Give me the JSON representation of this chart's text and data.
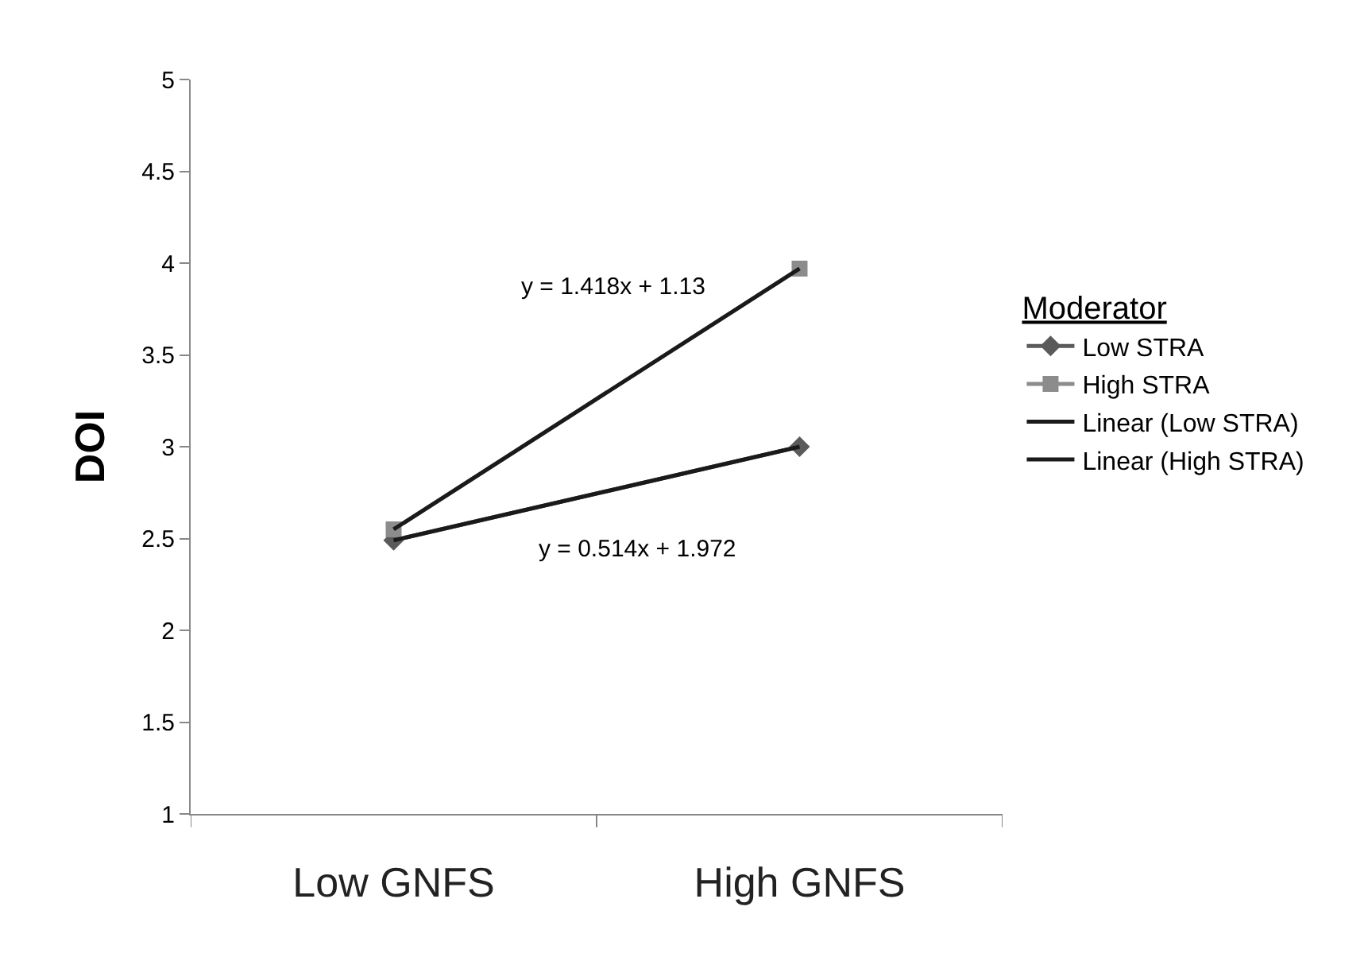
{
  "chart_data": {
    "type": "line",
    "ylabel": "DOI",
    "legend_title": "Moderator",
    "legend": "right",
    "categories": [
      "Low GNFS",
      "High GNFS"
    ],
    "series": [
      {
        "name": "Low STRA",
        "color": "#5a5a5a",
        "values": [
          2.49,
          3.0
        ],
        "marker": "diamond"
      },
      {
        "name": "High STRA",
        "color": "#8c8c8c",
        "values": [
          2.55,
          3.97
        ],
        "marker": "square"
      },
      {
        "name": "Linear (Low STRA)",
        "color": "#1a1a1a",
        "values": [
          2.49,
          3.0
        ],
        "marker": "none"
      },
      {
        "name": "Linear (High STRA)",
        "color": "#1a1a1a",
        "values": [
          2.55,
          3.97
        ],
        "marker": "none"
      }
    ],
    "annotations": [
      "y = 1.418x + 1.13",
      "y = 0.514x + 1.972"
    ],
    "ylim": [
      1,
      5
    ],
    "yticks": [
      1,
      1.5,
      2,
      2.5,
      3,
      3.5,
      4,
      4.5,
      5
    ]
  }
}
